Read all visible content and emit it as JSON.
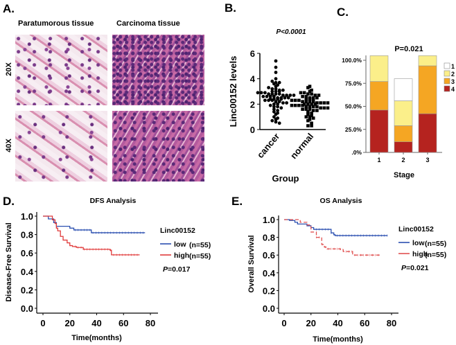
{
  "panels": {
    "a": {
      "label": "A.",
      "col_headers": [
        "Paratumorous tissue",
        "Carcinoma tissue"
      ],
      "row_labels": [
        "20X",
        "40X"
      ]
    },
    "b": {
      "label": "B."
    },
    "c": {
      "label": "C."
    },
    "d": {
      "label": "D."
    },
    "e": {
      "label": "E."
    }
  },
  "chart_data": [
    {
      "id": "B",
      "type": "scatter",
      "title": "P<0.0001",
      "xlabel": "Group",
      "ylabel": "Linc00152  levels",
      "categories": [
        "cancer",
        "normal"
      ],
      "ylim": [
        0,
        6
      ],
      "yticks": [
        0,
        2,
        4,
        6
      ],
      "series": [
        {
          "name": "cancer",
          "marker": "circle",
          "values": [
            5.4,
            4.9,
            4.5,
            4.0,
            3.8,
            3.7,
            3.7,
            3.6,
            3.5,
            3.4,
            3.3,
            3.2,
            3.2,
            3.1,
            3.1,
            3.0,
            3.0,
            3.0,
            2.9,
            2.9,
            2.9,
            2.8,
            2.8,
            2.8,
            2.8,
            2.7,
            2.7,
            2.7,
            2.7,
            2.6,
            2.6,
            2.6,
            2.6,
            2.5,
            2.5,
            2.5,
            2.5,
            2.4,
            2.4,
            2.4,
            2.4,
            2.3,
            2.3,
            2.3,
            2.2,
            2.2,
            2.1,
            2.1,
            2.0,
            2.0,
            1.9,
            1.8,
            1.8,
            1.7,
            1.6,
            1.5,
            1.4,
            1.3,
            1.2,
            1.0,
            0.9,
            0.8,
            0.7,
            0.6,
            0.5
          ]
        },
        {
          "name": "normal",
          "marker": "square",
          "values": [
            3.4,
            3.3,
            3.1,
            3.0,
            2.9,
            2.9,
            2.8,
            2.8,
            2.7,
            2.7,
            2.6,
            2.6,
            2.5,
            2.5,
            2.5,
            2.4,
            2.4,
            2.4,
            2.3,
            2.3,
            2.3,
            2.2,
            2.2,
            2.2,
            2.2,
            2.1,
            2.1,
            2.1,
            2.1,
            2.0,
            2.0,
            2.0,
            2.0,
            1.9,
            1.9,
            1.9,
            1.9,
            1.8,
            1.8,
            1.8,
            1.8,
            1.7,
            1.7,
            1.7,
            1.6,
            1.6,
            1.6,
            1.5,
            1.5,
            1.4,
            1.3,
            1.2,
            1.1,
            1.0,
            1.0,
            0.9,
            0.8,
            0.7,
            0.5,
            0.3,
            0.3
          ]
        }
      ]
    },
    {
      "id": "C",
      "type": "bar",
      "stacked": true,
      "title": "P=0.021",
      "xlabel": "Stage",
      "categories": [
        "1",
        "2",
        "3"
      ],
      "yticks": [
        ".0%",
        "25.0%",
        "50.0%",
        "75.0%",
        "100.0%"
      ],
      "ylim": [
        0,
        100
      ],
      "legend": "right",
      "series": [
        {
          "name": "4",
          "color": "#b5231f",
          "values": [
            46,
            11.5,
            42
          ]
        },
        {
          "name": "3",
          "color": "#f5a623",
          "values": [
            31,
            17.5,
            52
          ]
        },
        {
          "name": "2",
          "color": "#fbef8a",
          "values": [
            28,
            27,
            11
          ]
        },
        {
          "name": "1",
          "color": "#ffffff",
          "values": [
            0,
            24,
            0
          ]
        }
      ]
    },
    {
      "id": "D",
      "type": "line",
      "step": true,
      "title": "DFS Analysis",
      "xlabel": "Time(months)",
      "ylabel": "Disease-Free Survival",
      "xlim": [
        0,
        80
      ],
      "ylim": [
        0,
        1
      ],
      "xticks": [
        0,
        20,
        40,
        60,
        80
      ],
      "yticks": [
        "0.0",
        "0.2",
        "0.4",
        "0.6",
        "0.8",
        "1.0"
      ],
      "legend_title": "Linc00152",
      "p_prefix": "P",
      "p_value": "=0.017",
      "legend": "right",
      "series": [
        {
          "name": "low",
          "n": "(n=55)",
          "color": "#2a4fb0",
          "points": [
            [
              0,
              1
            ],
            [
              4,
              0.97
            ],
            [
              8,
              0.93
            ],
            [
              10,
              0.89
            ],
            [
              20,
              0.87
            ],
            [
              23,
              0.85
            ],
            [
              35,
              0.85
            ],
            [
              36,
              0.82
            ],
            [
              76,
              0.82
            ]
          ]
        },
        {
          "name": "high",
          "n": "(n=55)",
          "color": "#e03a3a",
          "points": [
            [
              0,
              1
            ],
            [
              6,
              1
            ],
            [
              7,
              0.96
            ],
            [
              9,
              0.92
            ],
            [
              10,
              0.87
            ],
            [
              11,
              0.84
            ],
            [
              13,
              0.78
            ],
            [
              15,
              0.74
            ],
            [
              18,
              0.71
            ],
            [
              20,
              0.68
            ],
            [
              22,
              0.67
            ],
            [
              25,
              0.66
            ],
            [
              30,
              0.64
            ],
            [
              50,
              0.63
            ],
            [
              51,
              0.58
            ],
            [
              72,
              0.58
            ]
          ]
        }
      ]
    },
    {
      "id": "E",
      "type": "line",
      "step": true,
      "title": "OS  Analysis",
      "xlabel": "Time(months)",
      "ylabel": "Overall Survival",
      "xlim": [
        0,
        80
      ],
      "ylim": [
        0,
        1
      ],
      "xticks": [
        0,
        20,
        40,
        60,
        80
      ],
      "yticks": [
        "0.0",
        "0.2",
        "0.4",
        "0.6",
        "0.8",
        "1.0"
      ],
      "legend_title": "Linc00152",
      "p_prefix": "P",
      "p_value": "=0.021",
      "legend": "right",
      "series": [
        {
          "name": "low",
          "n": "(n=55)",
          "color": "#2a4fb0",
          "points": [
            [
              0,
              1
            ],
            [
              4,
              0.99
            ],
            [
              8,
              0.97
            ],
            [
              10,
              0.95
            ],
            [
              17,
              0.93
            ],
            [
              20,
              0.91
            ],
            [
              22,
              0.89
            ],
            [
              33,
              0.89
            ],
            [
              35,
              0.85
            ],
            [
              37,
              0.83
            ],
            [
              38,
              0.82
            ],
            [
              77,
              0.82
            ]
          ]
        },
        {
          "name": "high",
          "n": "(n=55)",
          "color": "#e05050",
          "dashed": true,
          "points": [
            [
              0,
              1
            ],
            [
              10,
              1
            ],
            [
              12,
              0.97
            ],
            [
              17,
              0.94
            ],
            [
              20,
              0.86
            ],
            [
              24,
              0.8
            ],
            [
              28,
              0.72
            ],
            [
              30,
              0.69
            ],
            [
              32,
              0.67
            ],
            [
              42,
              0.66
            ],
            [
              44,
              0.64
            ],
            [
              50,
              0.64
            ],
            [
              51,
              0.6
            ],
            [
              72,
              0.6
            ]
          ]
        }
      ]
    }
  ]
}
